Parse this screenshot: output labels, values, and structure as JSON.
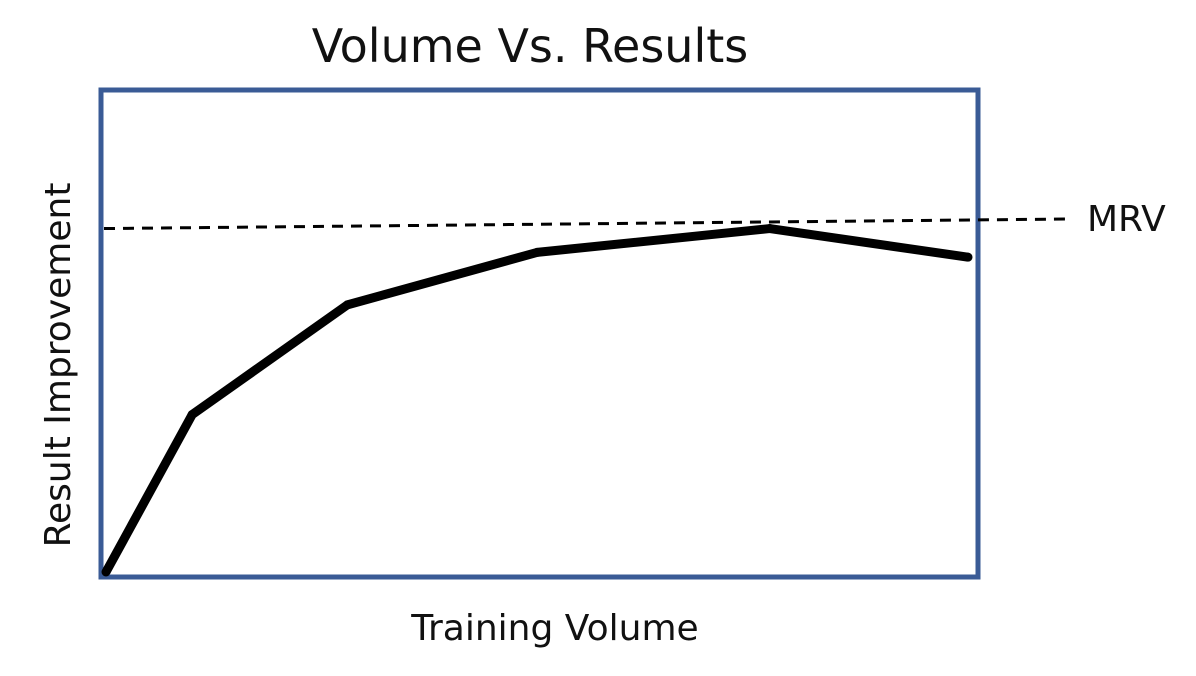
{
  "chart_data": {
    "type": "line",
    "title": "Volume Vs. Results",
    "xlabel": "Training Volume",
    "ylabel": "Result Improvement",
    "grid": false,
    "legend": "none",
    "colors": {
      "frame": "#3a5b96",
      "series": "#000000",
      "reference": "#000000"
    },
    "xlim": [
      0,
      100
    ],
    "ylim": [
      0,
      100
    ],
    "series": [
      {
        "x": [
          0,
          10,
          28,
          50,
          77,
          100
        ],
        "values": [
          0,
          33,
          56,
          67,
          72,
          66
        ]
      }
    ],
    "reference_line": {
      "label": "MRV",
      "style": "dashed",
      "y_start": 72,
      "y_end": 74
    }
  }
}
